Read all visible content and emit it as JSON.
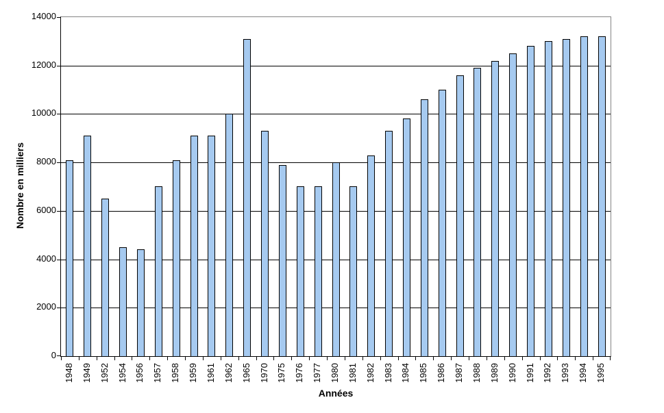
{
  "chart_data": {
    "type": "bar",
    "title": "",
    "xlabel": "Années",
    "ylabel": "Nombre en milliers",
    "categories": [
      "1948",
      "1949",
      "1952",
      "1954",
      "1956",
      "1957",
      "1958",
      "1959",
      "1961",
      "1962",
      "1965",
      "1970",
      "1975",
      "1976",
      "1977",
      "1980",
      "1981",
      "1982",
      "1983",
      "1984",
      "1985",
      "1986",
      "1987",
      "1988",
      "1989",
      "1990",
      "1991",
      "1992",
      "1993",
      "1994",
      "1995"
    ],
    "values": [
      8100,
      9100,
      6500,
      4500,
      4400,
      7000,
      8100,
      9100,
      9100,
      10000,
      13100,
      9300,
      7900,
      7000,
      7000,
      8000,
      7000,
      8300,
      9300,
      9800,
      10600,
      11000,
      11600,
      11900,
      12200,
      12500,
      12800,
      13000,
      13100,
      13200,
      13200
    ],
    "ylim": [
      0,
      14000
    ],
    "yticks": [
      "0",
      "2000",
      "4000",
      "6000",
      "8000",
      "10000",
      "12000",
      "14000"
    ],
    "ytick_step": 2000,
    "grid": true,
    "legend": false,
    "bar_color": "#A6CAF0",
    "bar_border_color": "#000000",
    "gridline_color": "#000000",
    "plot_border_color": "#848484"
  }
}
